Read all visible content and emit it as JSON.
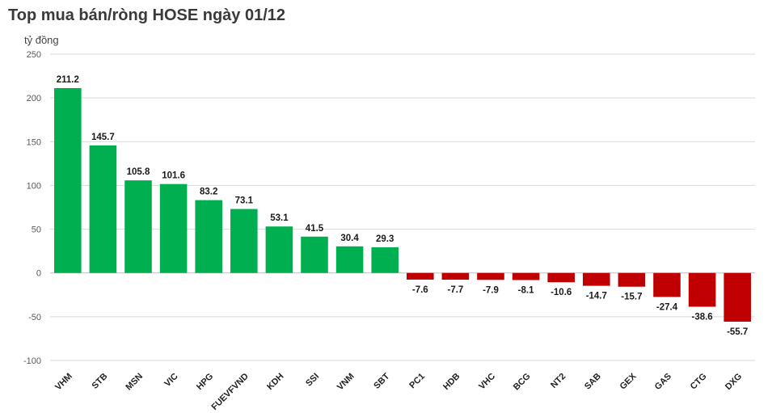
{
  "chart_data": {
    "type": "bar",
    "title": "Top mua bán/ròng HOSE ngày 01/12",
    "ylabel": "tỷ đồng",
    "xlabel": "",
    "ylim": [
      -100,
      250
    ],
    "yticks": [
      250,
      200,
      150,
      100,
      50,
      0,
      -50,
      -100
    ],
    "grid": true,
    "categories": [
      "VHM",
      "STB",
      "MSN",
      "VIC",
      "HPG",
      "FUEVFVND",
      "KDH",
      "SSI",
      "VNM",
      "SBT",
      "PC1",
      "HDB",
      "VHC",
      "BCG",
      "NT2",
      "SAB",
      "GEX",
      "GAS",
      "CTG",
      "DXG"
    ],
    "values": [
      211.2,
      145.7,
      105.8,
      101.6,
      83.2,
      73.1,
      53.1,
      41.5,
      30.4,
      29.3,
      -7.6,
      -7.7,
      -7.9,
      -8.1,
      -10.6,
      -14.7,
      -15.7,
      -27.4,
      -38.6,
      -55.7
    ],
    "colors": {
      "positive": "#00b050",
      "negative": "#c00000"
    }
  }
}
